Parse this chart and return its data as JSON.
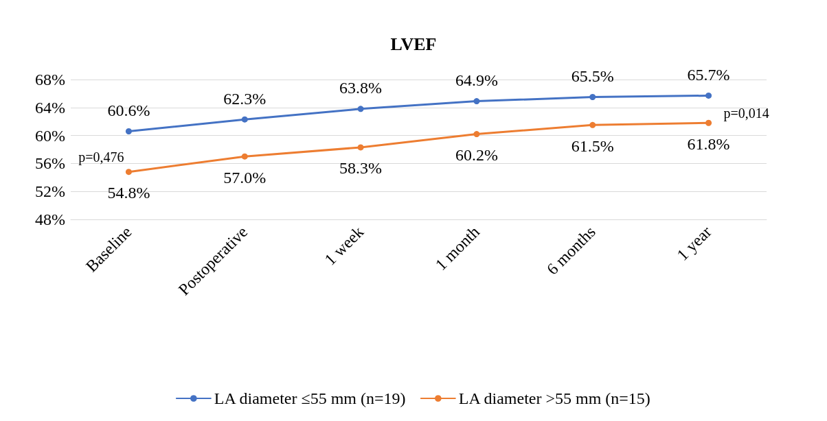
{
  "chart_data": {
    "type": "line",
    "title": "LVEF",
    "categories": [
      "Baseline",
      "Postoperative",
      "1 week",
      "1 month",
      "6 months",
      "1 year"
    ],
    "series": [
      {
        "name": "LA diameter ≤55 mm (n=19)",
        "color": "#4472c4",
        "values": [
          60.6,
          62.3,
          63.8,
          64.9,
          65.5,
          65.7
        ],
        "value_labels": [
          "60.6%",
          "62.3%",
          "63.8%",
          "64.9%",
          "65.5%",
          "65.7%"
        ]
      },
      {
        "name": "LA diameter >55 mm (n=15)",
        "color": "#ed7d31",
        "values": [
          54.8,
          57.0,
          58.3,
          60.2,
          61.5,
          61.8
        ],
        "value_labels": [
          "54.8%",
          "57.0%",
          "58.3%",
          "60.2%",
          "61.5%",
          "61.8%"
        ]
      }
    ],
    "ylim": [
      48,
      68
    ],
    "yticks": [
      {
        "value": 48,
        "label": "48%"
      },
      {
        "value": 52,
        "label": "52%"
      },
      {
        "value": 56,
        "label": "56%"
      },
      {
        "value": 60,
        "label": "60%"
      },
      {
        "value": 64,
        "label": "64%"
      },
      {
        "value": 68,
        "label": "68%"
      }
    ],
    "annotations": [
      "p=0,476",
      "p=0,014"
    ],
    "grid": "y",
    "legend": "bottom",
    "marker": "circle",
    "line_style": "solid"
  }
}
